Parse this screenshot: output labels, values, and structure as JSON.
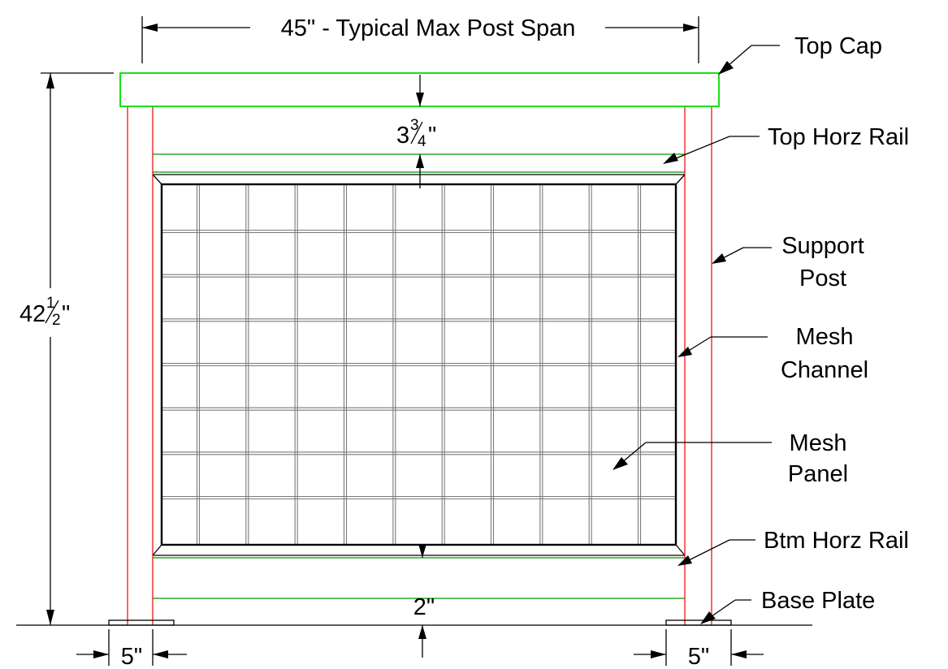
{
  "dimensions": {
    "span": "45\" - Typical Max Post Span",
    "height_whole": "42",
    "height_frac_num": "1",
    "height_frac_den": "2",
    "inch": "\"",
    "cap_gap_whole": "3",
    "cap_gap_frac_num": "3",
    "cap_gap_frac_den": "4",
    "bottom_gap": "2\"",
    "left_post_width": "5\"",
    "right_post_width": "5\""
  },
  "labels": {
    "top_cap": "Top Cap",
    "top_horz_rail": "Top Horz Rail",
    "support_post_1": "Support",
    "support_post_2": "Post",
    "mesh_channel_1": "Mesh",
    "mesh_channel_2": "Channel",
    "mesh_panel_1": "Mesh",
    "mesh_panel_2": "Panel",
    "btm_horz_rail": "Btm Horz Rail",
    "base_plate": "Base Plate"
  },
  "colors": {
    "top_cap": "#00dd00",
    "rail": "#009900",
    "post": "#ee0000",
    "lines": "#000000",
    "mesh": "#7a7a7a"
  },
  "mesh_grid": {
    "columns": 11,
    "rows": 8
  }
}
